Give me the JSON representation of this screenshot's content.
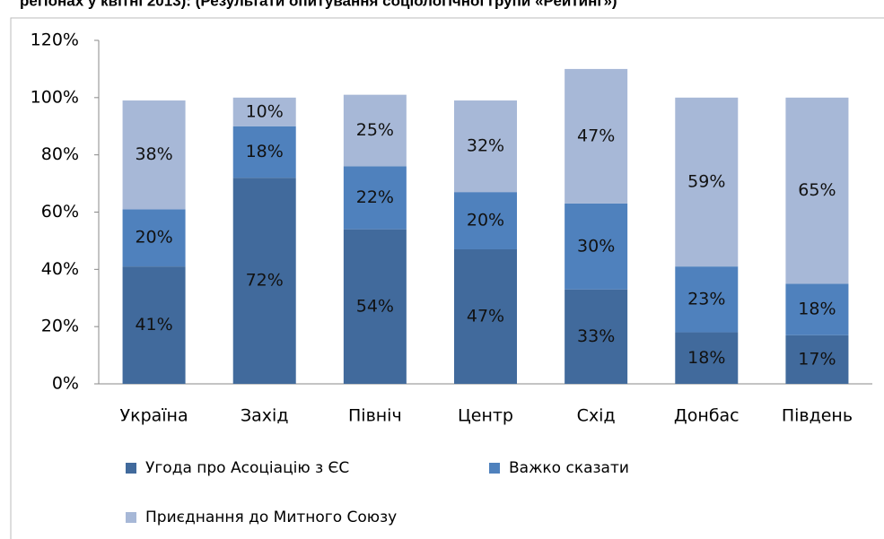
{
  "chart_data": {
    "type": "stacked_bar",
    "title": "регіонах у квітні 2013):  (Результати опитування соціологічної групи «Рейтинг»)",
    "categories": [
      "Україна",
      "Захід",
      "Північ",
      "Центр",
      "Схід",
      "Донбас",
      "Південь"
    ],
    "series": [
      {
        "name": "Угода про Асоціацію з ЄС",
        "color": "#416a9c",
        "values": [
          41,
          72,
          54,
          47,
          33,
          18,
          17
        ],
        "value_labels": [
          "41%",
          "72%",
          "54%",
          "47%",
          "33%",
          "18%",
          "17%"
        ]
      },
      {
        "name": "Важко сказати",
        "color": "#4f81bd",
        "values": [
          20,
          18,
          22,
          20,
          30,
          23,
          18
        ],
        "value_labels": [
          "20%",
          "18%",
          "22%",
          "20%",
          "30%",
          "23%",
          "18%"
        ]
      },
      {
        "name": "Приєднання до Митного Союзу",
        "color": "#a7b8d7",
        "values": [
          38,
          10,
          25,
          32,
          47,
          59,
          65
        ],
        "value_labels": [
          "38%",
          "10%",
          "25%",
          "32%",
          "47%",
          "59%",
          "65%"
        ]
      }
    ],
    "ylim": [
      0,
      120
    ],
    "yticks": [
      {
        "value": 0,
        "label": "0%"
      },
      {
        "value": 20,
        "label": "20%"
      },
      {
        "value": 40,
        "label": "40%"
      },
      {
        "value": 60,
        "label": "60%"
      },
      {
        "value": 80,
        "label": "80%"
      },
      {
        "value": 100,
        "label": "100%"
      },
      {
        "value": 120,
        "label": "120%"
      }
    ],
    "legend": "bottom"
  }
}
